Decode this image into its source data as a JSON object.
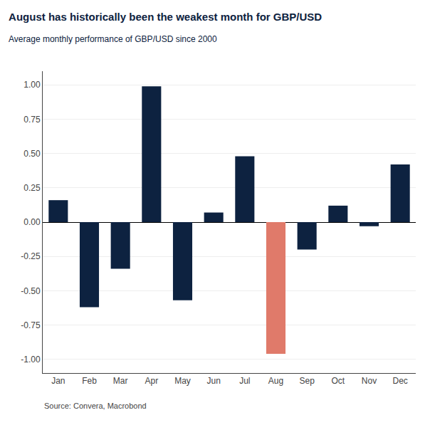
{
  "chart_data": {
    "type": "bar",
    "title": "August has historically been the weakest month for GBP/USD",
    "subtitle": "Average monthly performance of GBP/USD since 2000",
    "annotations": [
      "Source: Convera, Macrobond"
    ],
    "categories": [
      "Jan",
      "Feb",
      "Mar",
      "Apr",
      "May",
      "Jun",
      "Jul",
      "Aug",
      "Sep",
      "Oct",
      "Nov",
      "Dec"
    ],
    "values": [
      0.16,
      -0.62,
      -0.34,
      0.99,
      -0.57,
      0.07,
      0.48,
      -0.96,
      -0.2,
      0.12,
      -0.03,
      0.42
    ],
    "colors": [
      "#0d2240",
      "#0d2240",
      "#0d2240",
      "#0d2240",
      "#0d2240",
      "#0d2240",
      "#0d2240",
      "#e07a6a",
      "#0d2240",
      "#0d2240",
      "#0d2240",
      "#0d2240"
    ],
    "ylim": [
      -1.1,
      1.1
    ],
    "yticks": [
      {
        "value": -1.0,
        "label": "-1.00"
      },
      -0.75,
      {
        "value": -0.5,
        "label": "-0.50"
      },
      -0.25,
      {
        "value": 0.0,
        "label": "0.00"
      },
      0.25,
      {
        "value": 0.5,
        "label": "0.50"
      },
      0.75,
      {
        "value": 1.0,
        "label": "1.00"
      }
    ],
    "grid": true
  }
}
